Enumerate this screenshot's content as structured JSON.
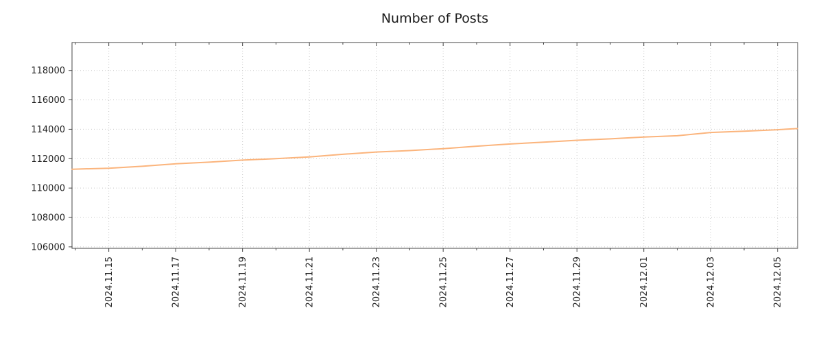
{
  "chart_data": {
    "type": "line",
    "title": "Number of Posts",
    "xlabel": "",
    "ylabel": "",
    "legend": "none",
    "grid": "dotted",
    "x_tick_labels": [
      "2024.11.15",
      "2024.11.17",
      "2024.11.19",
      "2024.11.21",
      "2024.11.23",
      "2024.11.25",
      "2024.11.27",
      "2024.11.29",
      "2024.12.01",
      "2024.12.03",
      "2024.12.05"
    ],
    "x_major_ticks": [
      0,
      2,
      4,
      6,
      8,
      10,
      12,
      14,
      16,
      18,
      20
    ],
    "y_ticks": [
      106000,
      108000,
      110000,
      112000,
      114000,
      116000,
      118000
    ],
    "xlim": [
      -1.1,
      20.6
    ],
    "ylim": [
      105900,
      119900
    ],
    "series": [
      {
        "name": "number-of-posts",
        "color": "#fbb47c",
        "x": [
          -1.1,
          0,
          1,
          2,
          3,
          4,
          5,
          6,
          7,
          8,
          9,
          10,
          11,
          12,
          13,
          14,
          15,
          16,
          17,
          18,
          19,
          20,
          20.6
        ],
        "values": [
          111280,
          111350,
          111480,
          111650,
          111760,
          111900,
          112000,
          112120,
          112300,
          112450,
          112550,
          112680,
          112850,
          113000,
          113120,
          113250,
          113350,
          113470,
          113560,
          113780,
          113870,
          113970,
          114050
        ]
      }
    ],
    "colors": {
      "grid": "#c8c8c8",
      "axis": "#444444",
      "text": "#222222",
      "background": "#ffffff"
    }
  }
}
